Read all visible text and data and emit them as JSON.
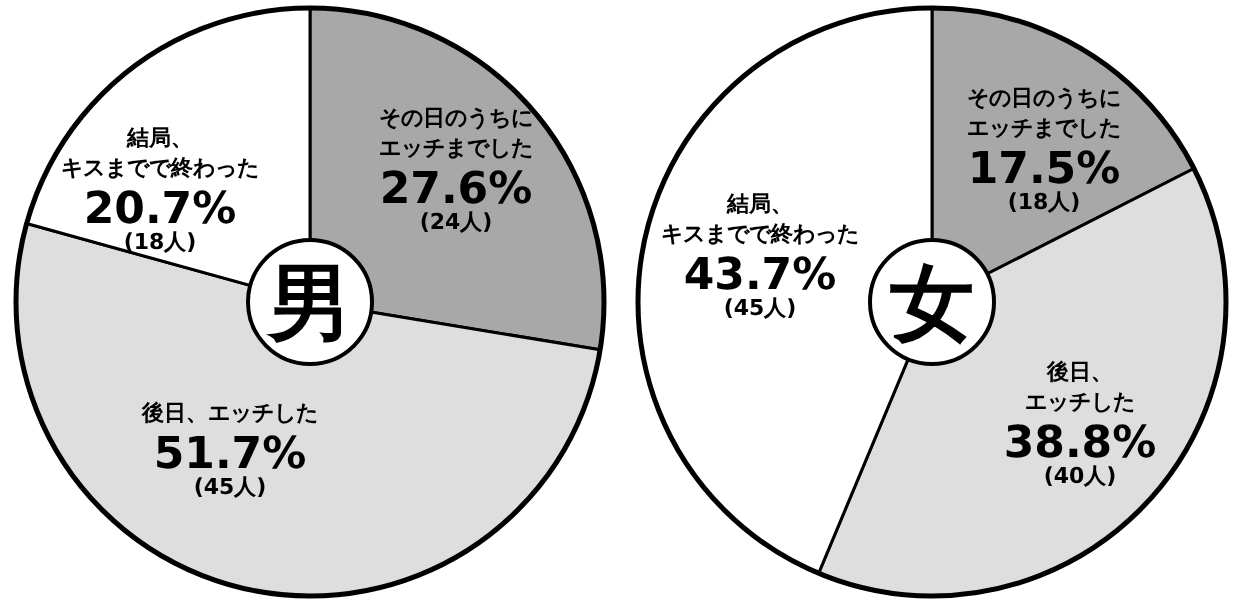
{
  "chart_data": [
    {
      "type": "donut",
      "title": "男",
      "categories": [
        "その日のうちにエッチまでした",
        "後日、エッチした",
        "結局、キスまでで終わった"
      ],
      "values": [
        27.6,
        51.7,
        20.7
      ],
      "colors": [
        "#a8a8a8",
        "#dedede",
        "#ffffff"
      ],
      "value_labels": [
        "27.6%",
        "51.7%",
        "20.7%"
      ],
      "annotations": [
        "(24人)",
        "(45人)",
        "(18人)"
      ]
    },
    {
      "type": "donut",
      "title": "女",
      "categories": [
        "その日のうちにエッチまでした",
        "後日、エッチした",
        "結局、キスまでで終わった"
      ],
      "values": [
        17.5,
        38.8,
        43.7
      ],
      "colors": [
        "#a8a8a8",
        "#dedede",
        "#ffffff"
      ],
      "value_labels": [
        "17.5%",
        "38.8%",
        "43.7%"
      ],
      "annotations": [
        "(18人)",
        "(40人)",
        "(45人)"
      ]
    }
  ]
}
